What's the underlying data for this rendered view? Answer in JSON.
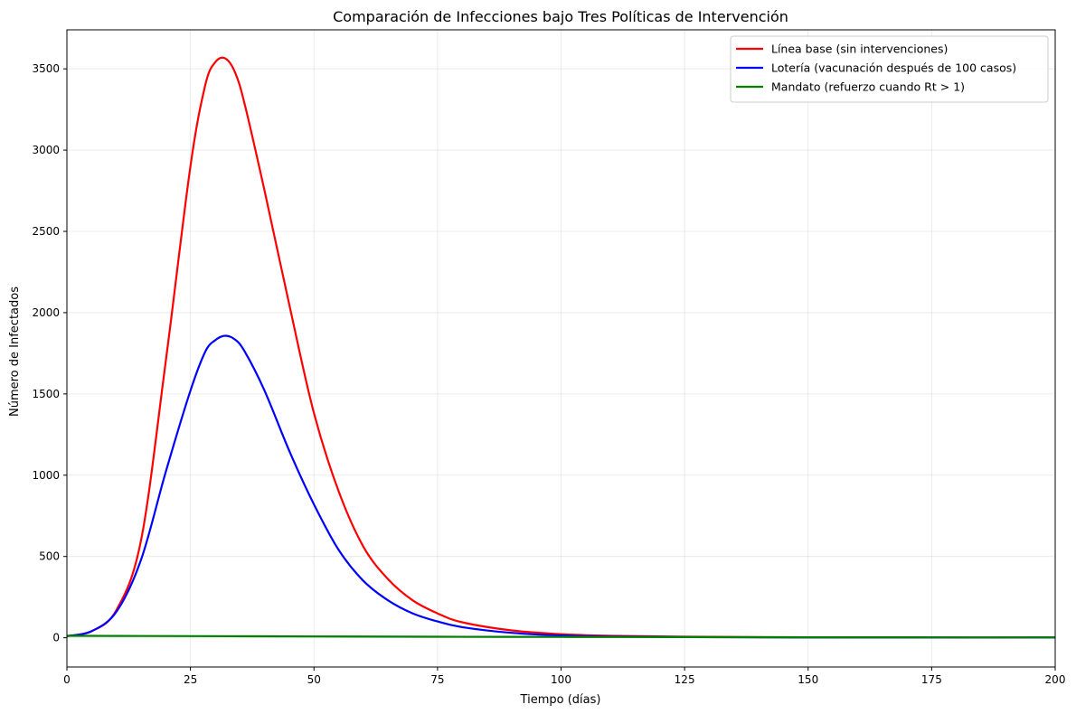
{
  "chart_data": {
    "type": "line",
    "title": "Comparación de Infecciones bajo Tres Políticas de Intervención",
    "xlabel": "Tiempo (días)",
    "ylabel": "Número de Infectados",
    "xlim": [
      0,
      200
    ],
    "ylim": [
      -180,
      3740
    ],
    "xticks": [
      0,
      25,
      50,
      75,
      100,
      125,
      150,
      175,
      200
    ],
    "yticks": [
      0,
      500,
      1000,
      1500,
      2000,
      2500,
      3000,
      3500
    ],
    "grid": true,
    "legend_position": "top-right",
    "series": [
      {
        "name": "Línea base (sin intervenciones)",
        "color": "#ff0000",
        "points": [
          [
            0,
            10
          ],
          [
            5,
            40
          ],
          [
            10,
            170
          ],
          [
            15,
            600
          ],
          [
            20,
            1700
          ],
          [
            25,
            2900
          ],
          [
            28,
            3400
          ],
          [
            30,
            3540
          ],
          [
            32,
            3565
          ],
          [
            34,
            3480
          ],
          [
            36,
            3280
          ],
          [
            40,
            2750
          ],
          [
            45,
            2050
          ],
          [
            50,
            1380
          ],
          [
            55,
            900
          ],
          [
            60,
            560
          ],
          [
            65,
            360
          ],
          [
            70,
            230
          ],
          [
            75,
            150
          ],
          [
            80,
            95
          ],
          [
            90,
            45
          ],
          [
            100,
            22
          ],
          [
            110,
            12
          ],
          [
            125,
            6
          ],
          [
            150,
            3
          ],
          [
            175,
            2
          ],
          [
            200,
            1
          ]
        ]
      },
      {
        "name": "Lotería (vacunación después de 100 casos)",
        "color": "#0000ff",
        "points": [
          [
            0,
            10
          ],
          [
            5,
            40
          ],
          [
            10,
            160
          ],
          [
            15,
            480
          ],
          [
            20,
            1020
          ],
          [
            25,
            1520
          ],
          [
            28,
            1760
          ],
          [
            30,
            1830
          ],
          [
            32,
            1858
          ],
          [
            34,
            1835
          ],
          [
            36,
            1760
          ],
          [
            40,
            1520
          ],
          [
            45,
            1150
          ],
          [
            50,
            820
          ],
          [
            55,
            540
          ],
          [
            60,
            350
          ],
          [
            65,
            230
          ],
          [
            70,
            150
          ],
          [
            75,
            100
          ],
          [
            80,
            65
          ],
          [
            90,
            30
          ],
          [
            100,
            14
          ],
          [
            110,
            8
          ],
          [
            125,
            4
          ],
          [
            150,
            2
          ],
          [
            175,
            1
          ],
          [
            200,
            1
          ]
        ]
      },
      {
        "name": "Mandato (refuerzo cuando Rt > 1)",
        "color": "#008000",
        "points": [
          [
            0,
            12
          ],
          [
            25,
            10
          ],
          [
            50,
            8
          ],
          [
            75,
            6
          ],
          [
            100,
            5
          ],
          [
            125,
            4
          ],
          [
            150,
            3
          ],
          [
            175,
            2
          ],
          [
            200,
            2
          ]
        ]
      }
    ]
  }
}
